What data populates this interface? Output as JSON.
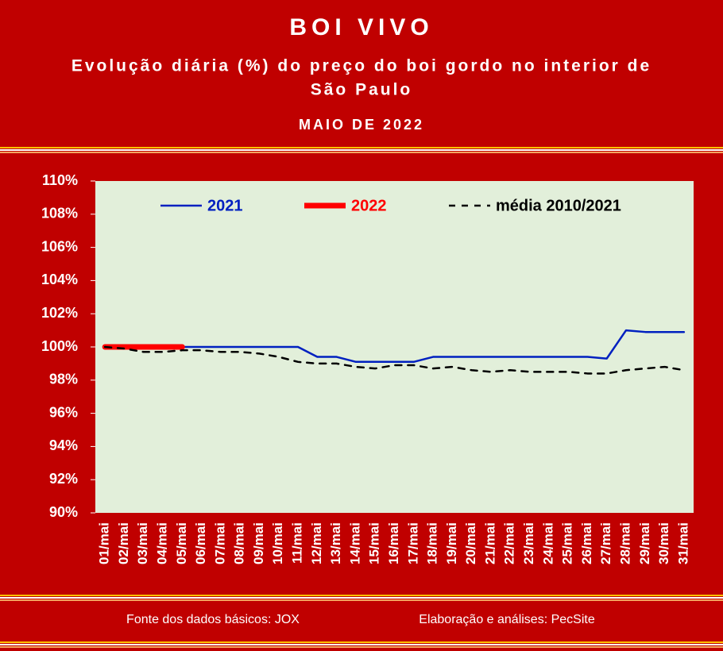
{
  "chart_data": {
    "type": "line",
    "title": "BOI VIVO",
    "subtitle": [
      "Evolução diária (%) do preço do boi gordo no interior de",
      "São Paulo"
    ],
    "period": "MAIO DE 2022",
    "source": "Fonte dos dados básicos: JOX",
    "credit": "Elaboração e análises: PecSite",
    "categories": [
      "01/mai",
      "02/mai",
      "03/mai",
      "04/mai",
      "05/mai",
      "06/mai",
      "07/mai",
      "08/mai",
      "09/mai",
      "10/mai",
      "11/mai",
      "12/mai",
      "13/mai",
      "14/mai",
      "15/mai",
      "16/mai",
      "17/mai",
      "18/mai",
      "19/mai",
      "20/mai",
      "21/mai",
      "22/mai",
      "23/mai",
      "24/mai",
      "25/mai",
      "26/mai",
      "27/mai",
      "28/mai",
      "29/mai",
      "30/mai",
      "31/mai"
    ],
    "series": [
      {
        "name": "2021",
        "color": "#0020c0",
        "width": 2.5,
        "dash": false,
        "values": [
          100,
          100,
          100,
          100,
          100,
          100,
          100,
          100,
          100,
          100,
          100,
          99.4,
          99.4,
          99.1,
          99.1,
          99.1,
          99.1,
          99.4,
          99.4,
          99.4,
          99.4,
          99.4,
          99.4,
          99.4,
          99.4,
          99.4,
          99.3,
          101.0,
          100.9,
          100.9,
          100.9
        ]
      },
      {
        "name": "2022",
        "color": "#ff0000",
        "width": 7,
        "dash": false,
        "values": [
          100,
          100,
          100,
          100,
          100,
          null,
          null,
          null,
          null,
          null,
          null,
          null,
          null,
          null,
          null,
          null,
          null,
          null,
          null,
          null,
          null,
          null,
          null,
          null,
          null,
          null,
          null,
          null,
          null,
          null,
          null
        ]
      },
      {
        "name": "média 2010/2021",
        "color": "#000000",
        "width": 2.5,
        "dash": true,
        "values": [
          100,
          99.9,
          99.7,
          99.7,
          99.8,
          99.8,
          99.7,
          99.7,
          99.6,
          99.4,
          99.1,
          99.0,
          99.0,
          98.8,
          98.7,
          98.9,
          98.9,
          98.7,
          98.8,
          98.6,
          98.5,
          98.6,
          98.5,
          98.5,
          98.5,
          98.4,
          98.4,
          98.6,
          98.7,
          98.8,
          98.6
        ]
      }
    ],
    "ylim": [
      90,
      110
    ],
    "yticks": [
      {
        "value": 90,
        "label": "90%"
      },
      {
        "value": 92,
        "label": "92%"
      },
      {
        "value": 94,
        "label": "94%"
      },
      {
        "value": 96,
        "label": "96%"
      },
      {
        "value": 98,
        "label": "98%"
      },
      {
        "value": 100,
        "label": "100%"
      },
      {
        "value": 102,
        "label": "102%"
      },
      {
        "value": 104,
        "label": "104%"
      },
      {
        "value": 106,
        "label": "106%"
      },
      {
        "value": 108,
        "label": "108%"
      },
      {
        "value": 110,
        "label": "110%"
      }
    ],
    "plot_background": "#e2efda"
  }
}
